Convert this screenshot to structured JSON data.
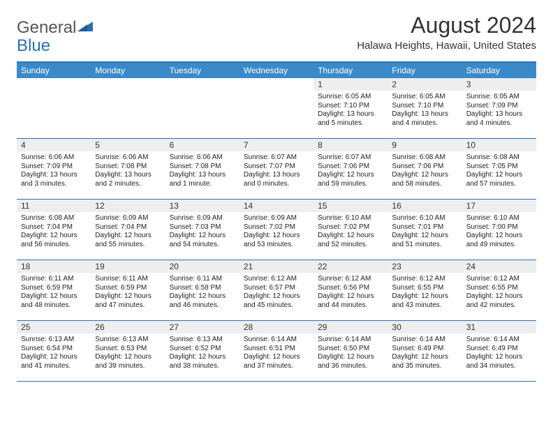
{
  "logo": {
    "part1": "General",
    "part2": "Blue"
  },
  "title": "August 2024",
  "location": "Halawa Heights, Hawaii, United States",
  "colors": {
    "header_bg": "#3a8ac9",
    "border": "#2b6fb0",
    "daynum_bg": "#eceeef"
  },
  "day_headers": [
    "Sunday",
    "Monday",
    "Tuesday",
    "Wednesday",
    "Thursday",
    "Friday",
    "Saturday"
  ],
  "weeks": [
    [
      {
        "empty": true
      },
      {
        "empty": true
      },
      {
        "empty": true
      },
      {
        "empty": true
      },
      {
        "n": "1",
        "sr": "6:05 AM",
        "ss": "7:10 PM",
        "dl": "13 hours and 5 minutes."
      },
      {
        "n": "2",
        "sr": "6:05 AM",
        "ss": "7:10 PM",
        "dl": "13 hours and 4 minutes."
      },
      {
        "n": "3",
        "sr": "6:05 AM",
        "ss": "7:09 PM",
        "dl": "13 hours and 4 minutes."
      }
    ],
    [
      {
        "n": "4",
        "sr": "6:06 AM",
        "ss": "7:09 PM",
        "dl": "13 hours and 3 minutes."
      },
      {
        "n": "5",
        "sr": "6:06 AM",
        "ss": "7:08 PM",
        "dl": "13 hours and 2 minutes."
      },
      {
        "n": "6",
        "sr": "6:06 AM",
        "ss": "7:08 PM",
        "dl": "13 hours and 1 minute."
      },
      {
        "n": "7",
        "sr": "6:07 AM",
        "ss": "7:07 PM",
        "dl": "13 hours and 0 minutes."
      },
      {
        "n": "8",
        "sr": "6:07 AM",
        "ss": "7:06 PM",
        "dl": "12 hours and 59 minutes."
      },
      {
        "n": "9",
        "sr": "6:08 AM",
        "ss": "7:06 PM",
        "dl": "12 hours and 58 minutes."
      },
      {
        "n": "10",
        "sr": "6:08 AM",
        "ss": "7:05 PM",
        "dl": "12 hours and 57 minutes."
      }
    ],
    [
      {
        "n": "11",
        "sr": "6:08 AM",
        "ss": "7:04 PM",
        "dl": "12 hours and 56 minutes."
      },
      {
        "n": "12",
        "sr": "6:09 AM",
        "ss": "7:04 PM",
        "dl": "12 hours and 55 minutes."
      },
      {
        "n": "13",
        "sr": "6:09 AM",
        "ss": "7:03 PM",
        "dl": "12 hours and 54 minutes."
      },
      {
        "n": "14",
        "sr": "6:09 AM",
        "ss": "7:02 PM",
        "dl": "12 hours and 53 minutes."
      },
      {
        "n": "15",
        "sr": "6:10 AM",
        "ss": "7:02 PM",
        "dl": "12 hours and 52 minutes."
      },
      {
        "n": "16",
        "sr": "6:10 AM",
        "ss": "7:01 PM",
        "dl": "12 hours and 51 minutes."
      },
      {
        "n": "17",
        "sr": "6:10 AM",
        "ss": "7:00 PM",
        "dl": "12 hours and 49 minutes."
      }
    ],
    [
      {
        "n": "18",
        "sr": "6:11 AM",
        "ss": "6:59 PM",
        "dl": "12 hours and 48 minutes."
      },
      {
        "n": "19",
        "sr": "6:11 AM",
        "ss": "6:59 PM",
        "dl": "12 hours and 47 minutes."
      },
      {
        "n": "20",
        "sr": "6:11 AM",
        "ss": "6:58 PM",
        "dl": "12 hours and 46 minutes."
      },
      {
        "n": "21",
        "sr": "6:12 AM",
        "ss": "6:57 PM",
        "dl": "12 hours and 45 minutes."
      },
      {
        "n": "22",
        "sr": "6:12 AM",
        "ss": "6:56 PM",
        "dl": "12 hours and 44 minutes."
      },
      {
        "n": "23",
        "sr": "6:12 AM",
        "ss": "6:55 PM",
        "dl": "12 hours and 43 minutes."
      },
      {
        "n": "24",
        "sr": "6:12 AM",
        "ss": "6:55 PM",
        "dl": "12 hours and 42 minutes."
      }
    ],
    [
      {
        "n": "25",
        "sr": "6:13 AM",
        "ss": "6:54 PM",
        "dl": "12 hours and 41 minutes."
      },
      {
        "n": "26",
        "sr": "6:13 AM",
        "ss": "6:53 PM",
        "dl": "12 hours and 39 minutes."
      },
      {
        "n": "27",
        "sr": "6:13 AM",
        "ss": "6:52 PM",
        "dl": "12 hours and 38 minutes."
      },
      {
        "n": "28",
        "sr": "6:14 AM",
        "ss": "6:51 PM",
        "dl": "12 hours and 37 minutes."
      },
      {
        "n": "29",
        "sr": "6:14 AM",
        "ss": "6:50 PM",
        "dl": "12 hours and 36 minutes."
      },
      {
        "n": "30",
        "sr": "6:14 AM",
        "ss": "6:49 PM",
        "dl": "12 hours and 35 minutes."
      },
      {
        "n": "31",
        "sr": "6:14 AM",
        "ss": "6:49 PM",
        "dl": "12 hours and 34 minutes."
      }
    ]
  ],
  "labels": {
    "sunrise": "Sunrise:",
    "sunset": "Sunset:",
    "daylight": "Daylight:"
  }
}
